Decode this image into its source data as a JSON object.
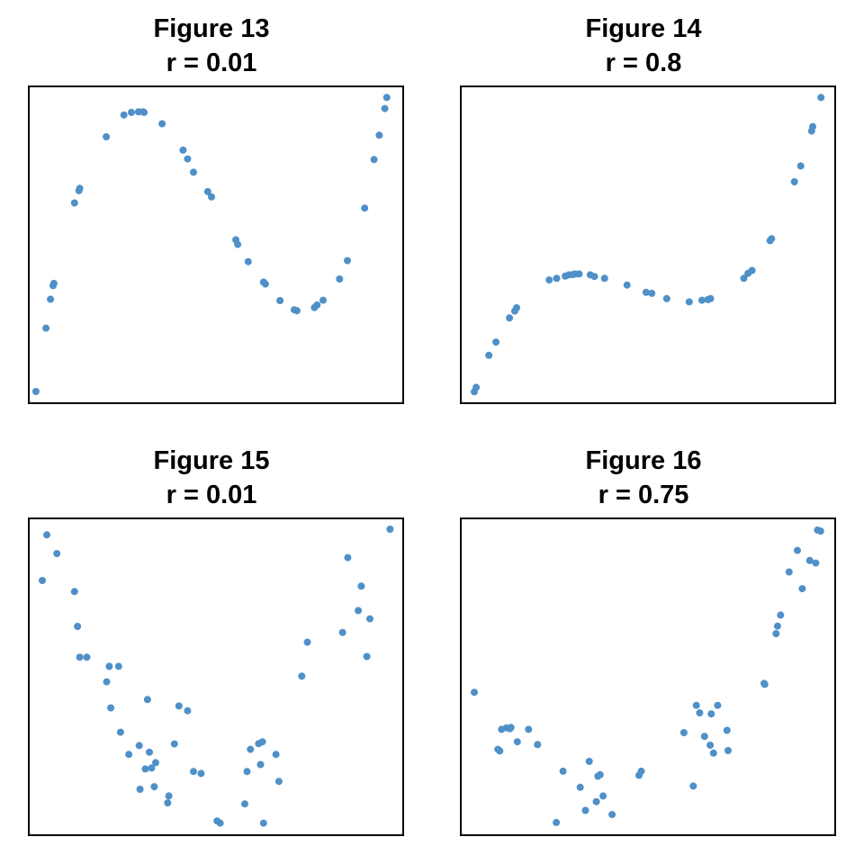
{
  "point_color": "#4f90c8",
  "chart_data": [
    {
      "type": "scatter",
      "title": "Figure 13",
      "subtitle": "r = 0.01",
      "xlim": [
        0,
        1
      ],
      "ylim": [
        0,
        1
      ],
      "x": [
        0.019,
        0.046,
        0.058,
        0.065,
        0.067,
        0.122,
        0.134,
        0.136,
        0.207,
        0.254,
        0.274,
        0.293,
        0.305,
        0.308,
        0.356,
        0.412,
        0.424,
        0.44,
        0.478,
        0.488,
        0.553,
        0.558,
        0.586,
        0.627,
        0.632,
        0.671,
        0.709,
        0.716,
        0.763,
        0.77,
        0.786,
        0.83,
        0.851,
        0.897,
        0.922,
        0.936,
        0.951,
        0.956
      ],
      "y": [
        0.037,
        0.237,
        0.328,
        0.371,
        0.378,
        0.632,
        0.671,
        0.678,
        0.841,
        0.91,
        0.918,
        0.92,
        0.92,
        0.918,
        0.882,
        0.799,
        0.771,
        0.729,
        0.668,
        0.651,
        0.516,
        0.501,
        0.447,
        0.382,
        0.376,
        0.324,
        0.295,
        0.292,
        0.302,
        0.31,
        0.325,
        0.392,
        0.45,
        0.616,
        0.769,
        0.846,
        0.93,
        0.965
      ]
    },
    {
      "type": "scatter",
      "title": "Figure 14",
      "subtitle": "r = 0.8",
      "xlim": [
        0,
        1
      ],
      "ylim": [
        0,
        1
      ],
      "x": [
        0.036,
        0.041,
        0.075,
        0.094,
        0.13,
        0.144,
        0.149,
        0.236,
        0.256,
        0.279,
        0.289,
        0.299,
        0.305,
        0.316,
        0.346,
        0.357,
        0.384,
        0.444,
        0.495,
        0.51,
        0.55,
        0.61,
        0.644,
        0.66,
        0.667,
        0.756,
        0.767,
        0.778,
        0.826,
        0.83,
        0.891,
        0.908,
        0.937,
        0.94,
        0.962
      ],
      "y": [
        0.036,
        0.05,
        0.151,
        0.193,
        0.269,
        0.291,
        0.301,
        0.389,
        0.394,
        0.401,
        0.405,
        0.406,
        0.408,
        0.408,
        0.405,
        0.4,
        0.394,
        0.373,
        0.35,
        0.347,
        0.33,
        0.32,
        0.325,
        0.327,
        0.33,
        0.394,
        0.41,
        0.419,
        0.513,
        0.519,
        0.699,
        0.749,
        0.859,
        0.873,
        0.965
      ]
    },
    {
      "type": "scatter",
      "title": "Figure 15",
      "subtitle": "r = 0.01",
      "xlim": [
        0,
        1
      ],
      "ylim": [
        0,
        1
      ],
      "x": [
        0.036,
        0.048,
        0.075,
        0.122,
        0.13,
        0.136,
        0.155,
        0.208,
        0.215,
        0.219,
        0.24,
        0.245,
        0.267,
        0.295,
        0.297,
        0.311,
        0.317,
        0.322,
        0.328,
        0.335,
        0.339,
        0.371,
        0.374,
        0.389,
        0.401,
        0.424,
        0.44,
        0.46,
        0.503,
        0.511,
        0.577,
        0.583,
        0.592,
        0.614,
        0.619,
        0.624,
        0.627,
        0.66,
        0.668,
        0.729,
        0.744,
        0.838,
        0.852,
        0.88,
        0.888,
        0.903,
        0.911,
        0.965
      ],
      "y": [
        0.804,
        0.948,
        0.889,
        0.769,
        0.659,
        0.562,
        0.562,
        0.484,
        0.533,
        0.402,
        0.533,
        0.325,
        0.255,
        0.283,
        0.145,
        0.209,
        0.428,
        0.262,
        0.212,
        0.153,
        0.229,
        0.102,
        0.124,
        0.288,
        0.408,
        0.393,
        0.201,
        0.195,
        0.045,
        0.038,
        0.099,
        0.201,
        0.271,
        0.289,
        0.223,
        0.295,
        0.038,
        0.255,
        0.17,
        0.502,
        0.609,
        0.64,
        0.876,
        0.709,
        0.786,
        0.564,
        0.683,
        0.966
      ]
    },
    {
      "type": "scatter",
      "title": "Figure 16",
      "subtitle": "r = 0.75",
      "xlim": [
        0,
        1
      ],
      "ylim": [
        0,
        1
      ],
      "x": [
        0.036,
        0.099,
        0.104,
        0.109,
        0.122,
        0.131,
        0.134,
        0.151,
        0.181,
        0.205,
        0.255,
        0.273,
        0.319,
        0.333,
        0.343,
        0.362,
        0.366,
        0.372,
        0.38,
        0.404,
        0.476,
        0.482,
        0.596,
        0.621,
        0.629,
        0.638,
        0.651,
        0.669,
        0.666,
        0.675,
        0.686,
        0.711,
        0.714,
        0.81,
        0.812,
        0.842,
        0.846,
        0.854,
        0.877,
        0.899,
        0.912,
        0.932,
        0.948,
        0.953,
        0.961
      ],
      "y": [
        0.451,
        0.271,
        0.266,
        0.334,
        0.339,
        0.336,
        0.34,
        0.295,
        0.334,
        0.286,
        0.04,
        0.202,
        0.151,
        0.078,
        0.233,
        0.106,
        0.186,
        0.191,
        0.124,
        0.065,
        0.189,
        0.202,
        0.324,
        0.155,
        0.41,
        0.386,
        0.312,
        0.383,
        0.284,
        0.259,
        0.41,
        0.331,
        0.267,
        0.479,
        0.476,
        0.636,
        0.66,
        0.695,
        0.831,
        0.899,
        0.778,
        0.867,
        0.859,
        0.963,
        0.96
      ]
    }
  ]
}
